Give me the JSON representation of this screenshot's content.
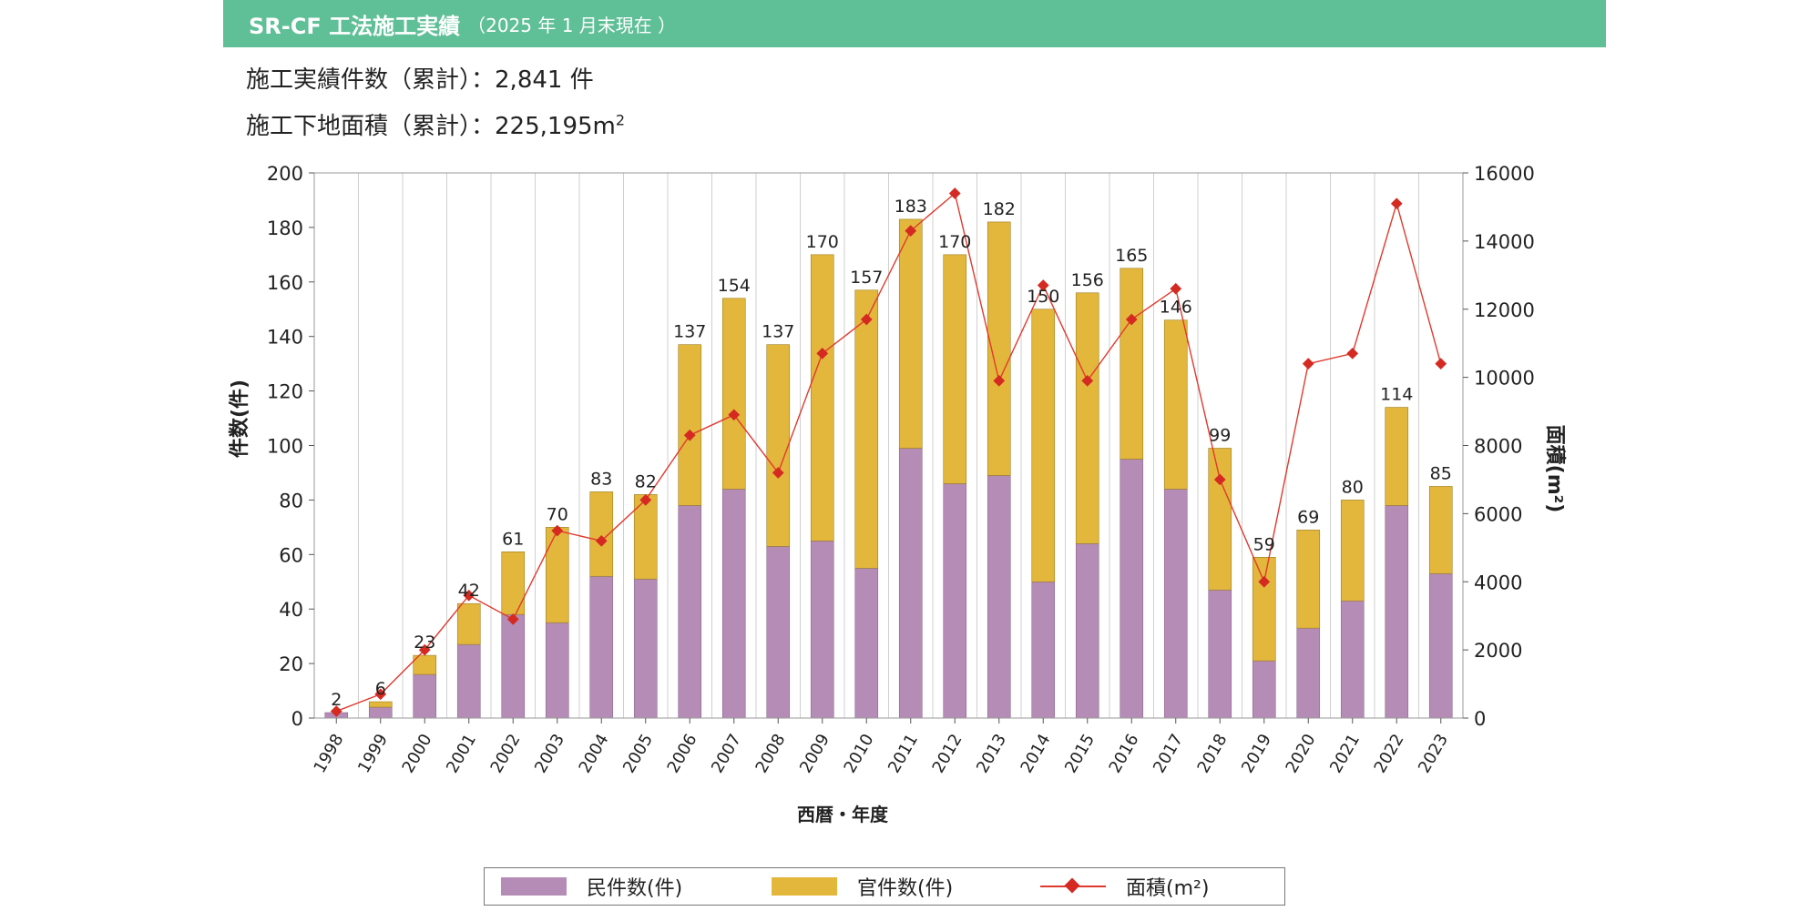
{
  "header": {
    "title_main": "SR-CF 工法施工実績",
    "title_sub": "（2025 年 1 月末現在 ）"
  },
  "summary": {
    "count_label": "施工実績件数（累計）：",
    "count_value": "2,841 件",
    "area_label": "施工下地面積（累計）：",
    "area_value": "225,195m",
    "area_sup": "2"
  },
  "colors": {
    "private": "#b58cb6",
    "public": "#e2b73c",
    "area_line": "#e03a2e",
    "area_marker": "#d42a22",
    "banner": "#5fbf96"
  },
  "chart_data": {
    "type": "bar",
    "stacked": true,
    "categories": [
      "1998",
      "1999",
      "2000",
      "2001",
      "2002",
      "2003",
      "2004",
      "2005",
      "2006",
      "2007",
      "2008",
      "2009",
      "2010",
      "2011",
      "2012",
      "2013",
      "2014",
      "2015",
      "2016",
      "2017",
      "2018",
      "2019",
      "2020",
      "2021",
      "2022",
      "2023"
    ],
    "series": [
      {
        "name": "民件数(件)",
        "values": [
          2,
          4,
          16,
          27,
          38,
          35,
          52,
          51,
          78,
          84,
          63,
          65,
          55,
          99,
          86,
          89,
          50,
          64,
          95,
          84,
          47,
          21,
          33,
          43,
          78,
          53
        ]
      },
      {
        "name": "官件数(件)",
        "values": [
          0,
          2,
          7,
          15,
          23,
          35,
          31,
          31,
          59,
          70,
          74,
          105,
          102,
          84,
          84,
          93,
          100,
          92,
          70,
          62,
          52,
          38,
          36,
          37,
          36,
          32
        ]
      }
    ],
    "totals": [
      2,
      6,
      23,
      42,
      61,
      70,
      83,
      82,
      137,
      154,
      137,
      170,
      157,
      183,
      170,
      182,
      150,
      156,
      165,
      146,
      99,
      59,
      69,
      80,
      114,
      85
    ],
    "line_series": {
      "name": "面積(m²)",
      "axis": "right",
      "values": [
        200,
        700,
        2000,
        3600,
        2900,
        5500,
        5200,
        6400,
        8300,
        8900,
        7200,
        10700,
        11700,
        14300,
        15400,
        9900,
        12700,
        9900,
        11700,
        12600,
        7000,
        4000,
        10400,
        10700,
        15100,
        10400
      ]
    },
    "xlabel": "西暦・年度",
    "ylabel": "件数(件)",
    "y2label": "面積(m²)",
    "ylim": [
      0,
      200
    ],
    "y2lim": [
      0,
      16000
    ],
    "yticks": [
      0,
      20,
      40,
      60,
      80,
      100,
      120,
      140,
      160,
      180,
      200
    ],
    "y2ticks": [
      0,
      2000,
      4000,
      6000,
      8000,
      10000,
      12000,
      14000,
      16000
    ],
    "grid": "vertical",
    "legend": {
      "placement": "bottom",
      "entries": [
        "民件数(件)",
        "官件数(件)",
        "面積(m²)"
      ]
    }
  }
}
